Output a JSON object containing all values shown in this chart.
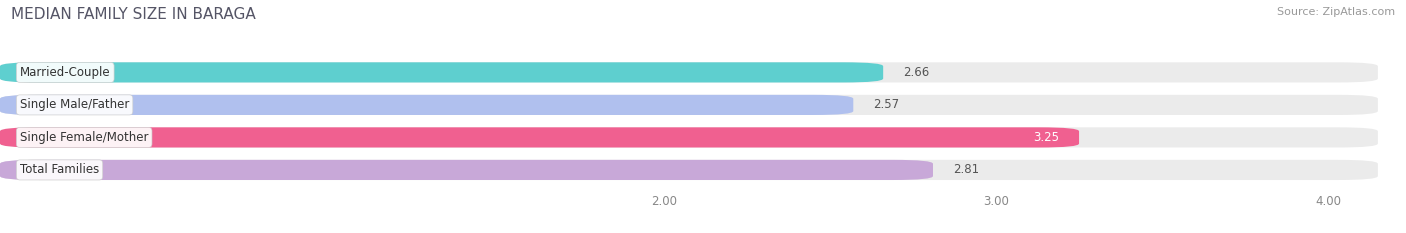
{
  "title": "MEDIAN FAMILY SIZE IN BARAGA",
  "source": "Source: ZipAtlas.com",
  "categories": [
    "Married-Couple",
    "Single Male/Father",
    "Single Female/Mother",
    "Total Families"
  ],
  "values": [
    2.66,
    2.57,
    3.25,
    2.81
  ],
  "bar_colors": [
    "#5ecfcf",
    "#b0c0ee",
    "#f06090",
    "#c8a8d8"
  ],
  "background_color": "#ffffff",
  "bar_bg_color": "#ebebeb",
  "xlim_min": 1.5,
  "xlim_max": 4.15,
  "data_min": 0.0,
  "data_max": 4.0,
  "xticks": [
    2.0,
    3.0,
    4.0
  ],
  "xtick_labels": [
    "2.00",
    "3.00",
    "4.00"
  ],
  "label_fontsize": 8.5,
  "value_fontsize": 8.5,
  "title_fontsize": 11,
  "bar_height": 0.62,
  "value_label_white": "Single Female/Mother"
}
